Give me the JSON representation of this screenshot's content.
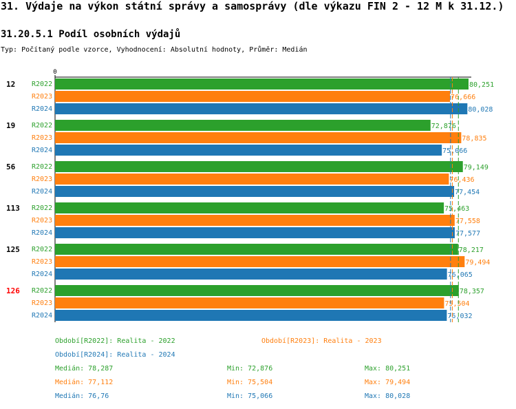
{
  "header": {
    "title": "31. Výdaje na výkon státní správy a samosprávy (dle výkazu FIN 2 - 12 M k 31.12.)",
    "subtitle": "31.20.5.1 Podíl osobních výdajů",
    "info": "Typ: Počítaný podle vzorce, Vyhodnocení: Absolutní hodnoty, Průměr: Medián"
  },
  "colors": {
    "R2022": "#2ca02c",
    "R2023": "#ff7f0e",
    "R2024": "#1f77b4",
    "highlight": "#ff0000"
  },
  "chart_data": {
    "type": "bar",
    "orientation": "horizontal",
    "axis_zero_label": "0",
    "xlim": [
      0,
      80.251
    ],
    "series_names": [
      "R2022",
      "R2023",
      "R2024"
    ],
    "groups": [
      {
        "label": "12",
        "highlight": false,
        "values": [
          80.251,
          76.666,
          80.028
        ],
        "labels": [
          "80,251",
          "76,666",
          "80,028"
        ]
      },
      {
        "label": "19",
        "highlight": false,
        "values": [
          72.876,
          78.835,
          75.066
        ],
        "labels": [
          "72,876",
          "78,835",
          "75,066"
        ]
      },
      {
        "label": "56",
        "highlight": false,
        "values": [
          79.149,
          76.436,
          77.454
        ],
        "labels": [
          "79,149",
          "76,436",
          "77,454"
        ]
      },
      {
        "label": "113",
        "highlight": false,
        "values": [
          75.463,
          77.558,
          77.577
        ],
        "labels": [
          "75,463",
          "77,558",
          "77,577"
        ]
      },
      {
        "label": "125",
        "highlight": false,
        "values": [
          78.217,
          79.494,
          76.065
        ],
        "labels": [
          "78,217",
          "79,494",
          "76,065"
        ]
      },
      {
        "label": "126",
        "highlight": true,
        "values": [
          78.357,
          75.504,
          76.032
        ],
        "labels": [
          "78,357",
          "75,504",
          "76,032"
        ]
      }
    ],
    "medians": [
      78.287,
      77.112,
      76.76
    ]
  },
  "legend": {
    "period_r2022": "Období[R2022]: Realita - 2022",
    "period_r2023": "Období[R2023]: Realita - 2023",
    "period_r2024": "Období[R2024]: Realita - 2024",
    "stats": {
      "r2022": {
        "median": "Medián: 78,287",
        "min": "Min: 72,876",
        "max": "Max: 80,251"
      },
      "r2023": {
        "median": "Medián: 77,112",
        "min": "Min: 75,504",
        "max": "Max: 79,494"
      },
      "r2024": {
        "median": "Medián: 76,76",
        "min": "Min: 75,066",
        "max": "Max: 80,028"
      }
    }
  }
}
